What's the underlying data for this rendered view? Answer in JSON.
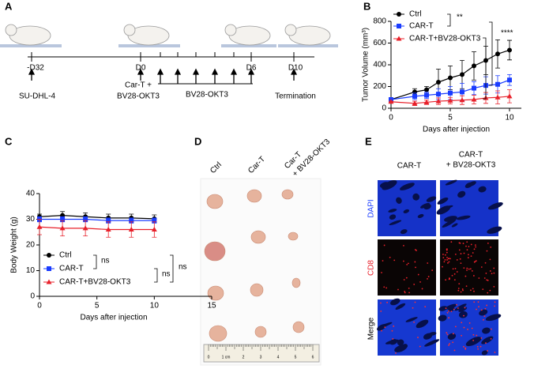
{
  "panel_labels": [
    "A",
    "B",
    "C",
    "D",
    "E"
  ],
  "timeline": {
    "days": [
      "-D32",
      "D0",
      "D6",
      "D10"
    ],
    "events": [
      [
        "SU-DHL-4"
      ],
      [
        "Car-T +",
        "BV28-OKT3"
      ],
      [
        "BV28-OKT3"
      ],
      [
        "Termination"
      ]
    ]
  },
  "photo": {
    "columns": [
      [
        "Ctrl"
      ],
      [
        "Car-T"
      ],
      [
        "Car-T",
        "+ BV28-OKT3"
      ]
    ],
    "ruler": [
      "0",
      "1 cm",
      "2",
      "3",
      "4",
      "5",
      "6"
    ]
  },
  "staining": {
    "columns": [
      [
        "CAR-T"
      ],
      [
        "CAR-T",
        "+ BV28-OKT3"
      ]
    ],
    "rows": [
      "DAPI",
      "CD8",
      "Merge"
    ]
  },
  "chart_data": [
    {
      "type": "line",
      "ylabel": "Tumor Volume (mm³)",
      "xlabel": "Days after injection",
      "x": [
        0,
        2,
        3,
        4,
        5,
        6,
        7,
        8,
        9,
        10
      ],
      "xlim": [
        0,
        11
      ],
      "xticks": [
        0,
        5,
        10
      ],
      "ylim": [
        0,
        800
      ],
      "yticks": [
        0,
        200,
        400,
        600,
        800
      ],
      "series": [
        {
          "name": "Ctrl",
          "color": "#000000",
          "marker": "circle",
          "values": [
            80,
            150,
            170,
            240,
            280,
            310,
            390,
            440,
            500,
            535
          ],
          "errors": [
            10,
            30,
            30,
            120,
            110,
            130,
            130,
            130,
            130,
            90
          ]
        },
        {
          "name": "CAR-T",
          "color": "#1a3cff",
          "marker": "square",
          "values": [
            80,
            110,
            120,
            130,
            140,
            150,
            185,
            210,
            220,
            260
          ],
          "errors": [
            5,
            30,
            30,
            50,
            60,
            80,
            60,
            80,
            80,
            50
          ]
        },
        {
          "name": "CAR-T+BV28-OKT3",
          "color": "#e8202a",
          "marker": "triangle",
          "values": [
            60,
            45,
            55,
            65,
            70,
            75,
            80,
            95,
            100,
            110
          ],
          "errors": [
            5,
            20,
            20,
            30,
            30,
            40,
            40,
            50,
            60,
            60
          ]
        }
      ],
      "annotations": [
        "**",
        "****"
      ]
    },
    {
      "type": "line",
      "ylabel": "Body Weight (g)",
      "xlabel": "Days after injection",
      "x": [
        0,
        2,
        4,
        6,
        8,
        10
      ],
      "xlim": [
        0,
        15
      ],
      "xticks": [
        0,
        5,
        10,
        15
      ],
      "ylim": [
        0,
        40
      ],
      "yticks": [
        0,
        10,
        20,
        30,
        40
      ],
      "series": [
        {
          "name": "Ctrl",
          "color": "#000000",
          "marker": "circle",
          "values": [
            31,
            31.5,
            31,
            30.5,
            30.5,
            30.2
          ],
          "errors": [
            1,
            1.5,
            1.5,
            1.5,
            1.5,
            1.5
          ]
        },
        {
          "name": "CAR-T",
          "color": "#1a3cff",
          "marker": "square",
          "values": [
            30,
            30,
            30,
            29.5,
            29.5,
            29.5
          ],
          "errors": [
            1,
            1,
            1,
            1,
            1,
            1
          ]
        },
        {
          "name": "CAR-T+BV28-OKT3",
          "color": "#e8202a",
          "marker": "triangle",
          "values": [
            27,
            26.5,
            26.5,
            26,
            26,
            26
          ],
          "errors": [
            3,
            3,
            3,
            3,
            3,
            3
          ]
        }
      ],
      "annotations": [
        "ns",
        "ns",
        "ns"
      ]
    }
  ]
}
